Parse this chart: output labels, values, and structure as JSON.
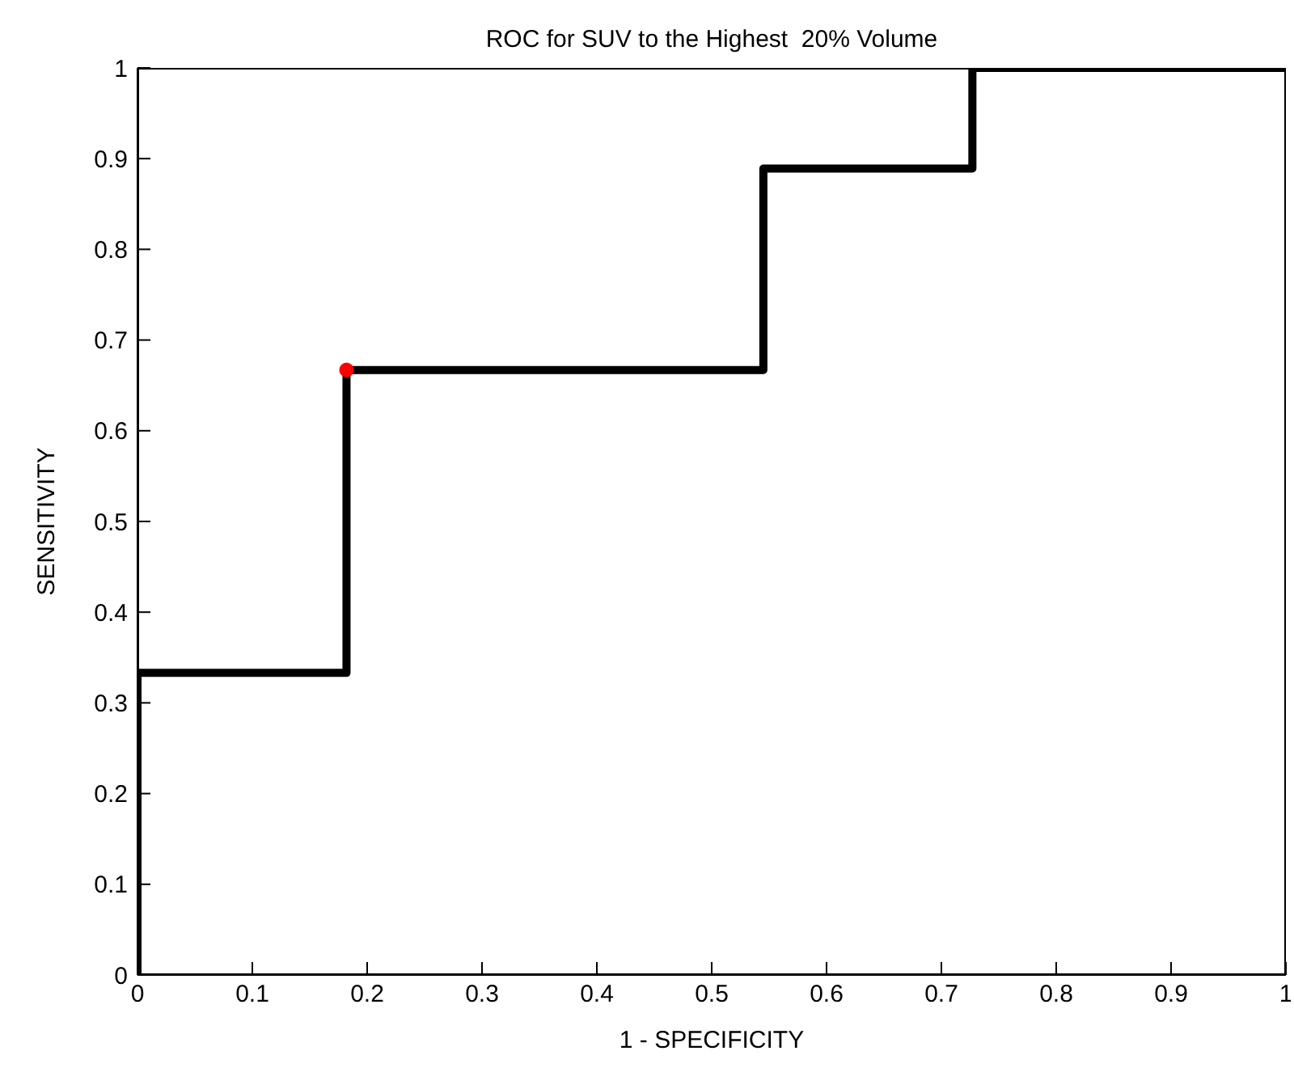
{
  "chart_data": {
    "type": "line",
    "title": "ROC for SUV to the Highest  20% Volume",
    "xlabel": "1 - SPECIFICITY",
    "ylabel": "SENSITIVITY",
    "xlim": [
      0,
      1
    ],
    "ylim": [
      0,
      1
    ],
    "xticks": [
      0,
      0.1,
      0.2,
      0.3,
      0.4,
      0.5,
      0.6,
      0.7,
      0.8,
      0.9,
      1
    ],
    "yticks": [
      0,
      0.1,
      0.2,
      0.3,
      0.4,
      0.5,
      0.6,
      0.7,
      0.8,
      0.9,
      1
    ],
    "grid": false,
    "line_style": "solid",
    "series": [
      {
        "color": "#000000",
        "marker": "none",
        "x": [
          0,
          0,
          0.182,
          0.182,
          0.545,
          0.545,
          0.727,
          0.727,
          1
        ],
        "values": [
          0,
          0.333,
          0.333,
          0.667,
          0.667,
          0.889,
          0.889,
          1,
          1
        ]
      },
      {
        "type": "scatter",
        "color": "#ff0000",
        "marker": "circle",
        "x": [
          0.182
        ],
        "values": [
          0.667
        ]
      }
    ]
  }
}
